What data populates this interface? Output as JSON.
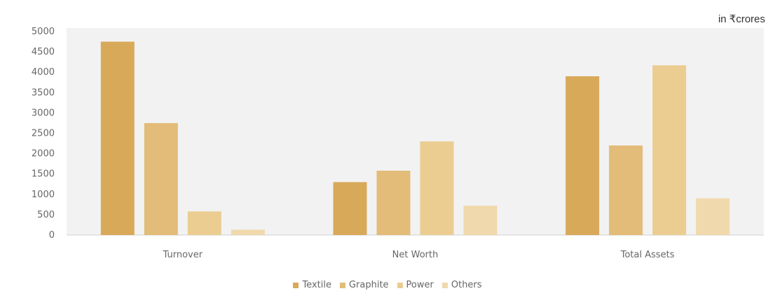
{
  "unit_label": "in ₹crores",
  "chart_data": {
    "type": "bar",
    "categories": [
      "Turnover",
      "Net Worth",
      "Total Assets"
    ],
    "series": [
      {
        "name": "Textile",
        "values": [
          4750,
          1300,
          3900
        ],
        "color": "#d9a95a"
      },
      {
        "name": "Graphite",
        "values": [
          2750,
          1580,
          2200
        ],
        "color": "#e2bc78"
      },
      {
        "name": "Power",
        "values": [
          580,
          2300,
          4170
        ],
        "color": "#ebcd92"
      },
      {
        "name": "Others",
        "values": [
          130,
          720,
          900
        ],
        "color": "#f0d9ac"
      }
    ],
    "title": "",
    "xlabel": "",
    "ylabel": "",
    "ylim": [
      0,
      5000
    ],
    "yticks": [
      "0",
      "500",
      "1000",
      "1500",
      "2000",
      "2500",
      "3000",
      "3500",
      "4000",
      "4500",
      "5000"
    ],
    "grid": false,
    "legend_position": "bottom",
    "plot_background": "#f2f2f2"
  }
}
